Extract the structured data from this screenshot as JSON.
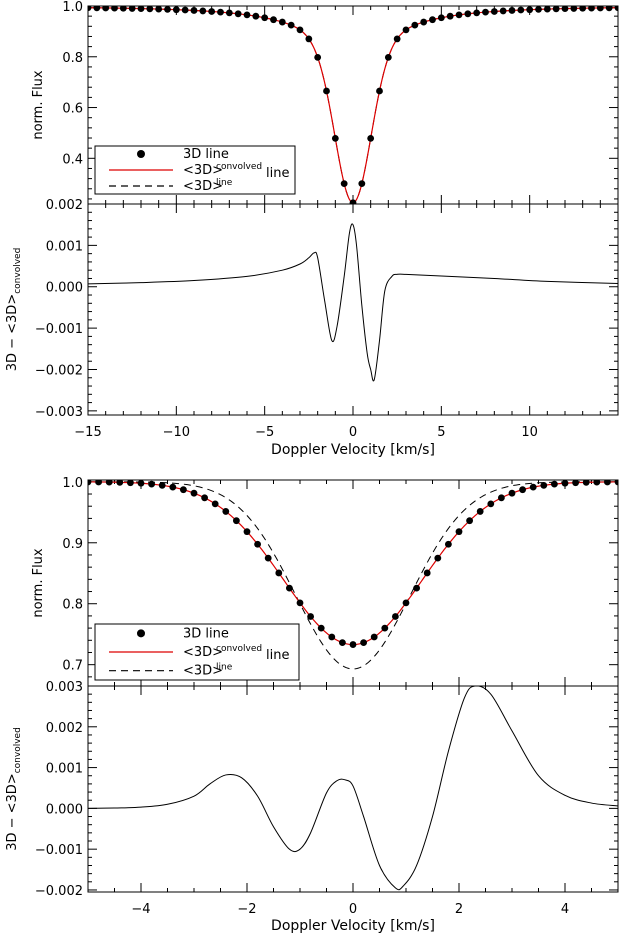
{
  "chart_data": [
    {
      "type": "line",
      "xlabel": "Doppler Velocity [km/s]",
      "xlim": [
        -15,
        15
      ],
      "xticks": [
        -15,
        -10,
        -5,
        0,
        5,
        10
      ],
      "xtick_labels": [
        "−15",
        "−10",
        "−5",
        "0",
        "5",
        "10"
      ],
      "legend": {
        "position": "bottom-left",
        "entries": [
          {
            "marker": "dot",
            "color": "#000000",
            "text": "3D line",
            "sup": ""
          },
          {
            "marker": "solid",
            "color": "#dd0000",
            "text": "<3D>",
            "sup": "convolved",
            "tail": "line"
          },
          {
            "marker": "dashed",
            "color": "#000000",
            "text": "<3D>",
            "sup": "line",
            "tail": ""
          }
        ]
      },
      "flux_panel": {
        "ylabel": "norm. Flux",
        "ylim": [
          0.22,
          1.0
        ],
        "yticks": [
          0.4,
          0.6,
          0.8,
          1.0
        ],
        "ytick_labels": [
          "0.4",
          "0.6",
          "0.8",
          "1.0"
        ],
        "line_profile": {
          "depth": 0.775,
          "gauss_amp": 0.6,
          "gauss_sigma": 1.0,
          "lorentz_amp": 0.175,
          "lorentz_gamma": 3.0,
          "dot_step": 0.5
        },
        "series": [
          {
            "name": "3D line",
            "style": "dots",
            "color": "#000000"
          },
          {
            "name": "<3D> convolved line",
            "style": "solid",
            "color": "#dd0000"
          },
          {
            "name": "<3D> line",
            "style": "dashed",
            "color": "#000000"
          }
        ]
      },
      "residual_panel": {
        "ylabel": "3D − <3D>",
        "ylabel_sub": "convolved",
        "ylim": [
          -0.0031,
          0.002
        ],
        "yticks": [
          -0.003,
          -0.002,
          -0.001,
          0.0,
          0.001,
          0.002
        ],
        "ytick_labels": [
          "−0.003",
          "−0.002",
          "−0.001",
          "0.000",
          "0.001",
          "0.002"
        ],
        "x": [
          -15,
          -12,
          -9,
          -6,
          -4,
          -3,
          -2.5,
          -2.2,
          -2.0,
          -1.6,
          -1.2,
          -0.9,
          -0.5,
          -0.2,
          0.0,
          0.2,
          0.5,
          0.8,
          1.0,
          1.2,
          1.5,
          1.8,
          2.2,
          2.5,
          3.0,
          5,
          8,
          11,
          15
        ],
        "values": [
          7e-05,
          0.0001,
          0.00015,
          0.00025,
          0.0004,
          0.00055,
          0.0007,
          0.00082,
          0.0007,
          -0.00035,
          -0.0013,
          -0.00095,
          0.00025,
          0.0013,
          0.0015,
          0.001,
          -0.00045,
          -0.0016,
          -0.002,
          -0.00225,
          -0.0013,
          -0.0001,
          0.00025,
          0.0003,
          0.0003,
          0.00026,
          0.0002,
          0.00013,
          8e-05
        ]
      }
    },
    {
      "type": "line",
      "xlabel": "Doppler Velocity [km/s]",
      "xlim": [
        -5,
        5
      ],
      "xticks": [
        -4,
        -2,
        0,
        2,
        4
      ],
      "xtick_labels": [
        "−4",
        "−2",
        "0",
        "2",
        "4"
      ],
      "legend": {
        "position": "bottom-left",
        "entries": [
          {
            "marker": "dot",
            "color": "#000000",
            "text": "3D line",
            "sup": ""
          },
          {
            "marker": "solid",
            "color": "#dd0000",
            "text": "<3D>",
            "sup": "convolved",
            "tail": "line"
          },
          {
            "marker": "dashed",
            "color": "#000000",
            "text": "<3D>",
            "sup": "line",
            "tail": ""
          }
        ]
      },
      "flux_panel": {
        "ylabel": "norm. Flux",
        "ylim": [
          0.665,
          1.003
        ],
        "yticks": [
          0.7,
          0.8,
          0.9,
          1.0
        ],
        "ytick_labels": [
          "0.7",
          "0.8",
          "0.9",
          "1.0"
        ],
        "profiles": {
          "convolved": {
            "depth": 0.267,
            "sigma": 1.3
          },
          "unconvolved": {
            "depth": 0.307,
            "sigma": 1.08
          },
          "dot_step": 0.2
        },
        "series": [
          {
            "name": "3D line",
            "style": "dots",
            "color": "#000000"
          },
          {
            "name": "<3D> convolved line",
            "style": "solid",
            "color": "#dd0000"
          },
          {
            "name": "<3D> line",
            "style": "dashed",
            "color": "#000000"
          }
        ]
      },
      "residual_panel": {
        "ylabel": "3D − <3D>",
        "ylabel_sub": "convolved",
        "ylim": [
          -0.00205,
          0.003
        ],
        "yticks": [
          -0.002,
          -0.001,
          0.0,
          0.001,
          0.002,
          0.003
        ],
        "ytick_labels": [
          "−0.002",
          "−0.001",
          "0.000",
          "0.001",
          "0.002",
          "0.003"
        ],
        "x": [
          -5,
          -4.5,
          -4,
          -3.5,
          -3,
          -2.7,
          -2.4,
          -2.1,
          -1.8,
          -1.5,
          -1.2,
          -1.0,
          -0.8,
          -0.5,
          -0.3,
          -0.15,
          0.0,
          0.2,
          0.5,
          0.8,
          0.95,
          1.2,
          1.5,
          1.8,
          2.1,
          2.3,
          2.6,
          3.0,
          3.5,
          4.0,
          4.5,
          5.0
        ],
        "values": [
          0.0,
          1e-05,
          3e-05,
          0.0001,
          0.0003,
          0.0006,
          0.00082,
          0.00075,
          0.0003,
          -0.00045,
          -0.001,
          -0.001,
          -0.0006,
          0.00038,
          0.00068,
          0.0007,
          0.00055,
          -0.0002,
          -0.0014,
          -0.00195,
          -0.0019,
          -0.0014,
          -0.0002,
          0.0014,
          0.0027,
          0.003,
          0.0028,
          0.0019,
          0.0008,
          0.00032,
          0.00013,
          6e-05
        ]
      }
    }
  ]
}
